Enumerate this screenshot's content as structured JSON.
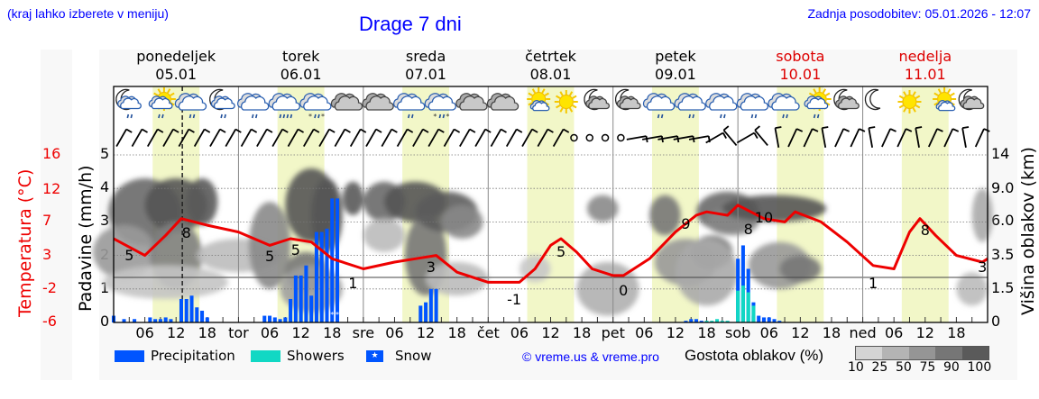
{
  "header": {
    "note": "(kraj lahko izberete v meniju)",
    "title": "Drage 7 dni",
    "last_update": "Zadnja posodobitev: 05.01.2026 - 12:07"
  },
  "days": [
    {
      "name": "ponedeljek",
      "date": "05.01",
      "weekend": false
    },
    {
      "name": "torek",
      "date": "06.01",
      "weekend": false
    },
    {
      "name": "sreda",
      "date": "07.01",
      "weekend": false
    },
    {
      "name": "četrtek",
      "date": "08.01",
      "weekend": false
    },
    {
      "name": "petek",
      "date": "09.01",
      "weekend": false
    },
    {
      "name": "sobota",
      "date": "10.01",
      "weekend": true
    },
    {
      "name": "nedelja",
      "date": "11.01",
      "weekend": true
    }
  ],
  "axes": {
    "temperature_label": "Temperatura (°C)",
    "temperature_ticks": [
      "16",
      "12",
      "7",
      "3",
      "-2",
      "-6"
    ],
    "precip_label": "Padavine (mm/h)",
    "precip_ticks": [
      "0",
      "1",
      "2",
      "3",
      "4",
      "5"
    ],
    "cloud_label": "Višina oblakov (km)",
    "cloud_ticks": [
      "0",
      "1.5",
      "3.5",
      "6.0",
      "9.0",
      "14"
    ],
    "x_ticks": [
      "06",
      "12",
      "18",
      "tor",
      "06",
      "12",
      "18",
      "sre",
      "06",
      "12",
      "18",
      "čet",
      "06",
      "12",
      "18",
      "pet",
      "06",
      "12",
      "18",
      "sob",
      "06",
      "12",
      "18",
      "ned",
      "06",
      "12",
      "18"
    ]
  },
  "legend": {
    "precipitation": "Precipitation",
    "showers": "Showers",
    "snow": "Snow",
    "copyright": "© vreme.us & vreme.pro",
    "cloud_density_title": "Gostota oblakov (%)",
    "cloud_density_ticks": [
      "10",
      "25",
      "50",
      "75",
      "90",
      "100"
    ]
  },
  "colors": {
    "precipitation": "#0055ff",
    "showers": "#11d8c4",
    "temperature": "#ee0000",
    "daylight": "#f2f7c8",
    "title": "#0000ff",
    "weekend": "#dd0000"
  },
  "weather_icons": [
    "moon-cloud-rain",
    "sun-cloud-rain",
    "cloud-rain",
    "moon-cloud-rain",
    "cloud-rain",
    "cloud-heavy-rain",
    "cloud-sleet",
    "cloud",
    "cloud",
    "cloud-rain",
    "cloud-sleet",
    "cloud",
    "cloud",
    "sun-small-cloud",
    "sun",
    "moon-cloud",
    "moon-cloud",
    "cloud-rain",
    "cloud-rain",
    "cloud-rain",
    "cloud-rain",
    "cloud-rain",
    "sun-cloud-rain",
    "moon-cloud",
    "moon",
    "sun",
    "sun-small-cloud",
    "moon-cloud"
  ],
  "chart_data": {
    "type": "line+bar",
    "title": "Drage 7 dni",
    "x_unit": "hours from Mon 05.01 00:00",
    "current_time_hour": 12,
    "temperature": {
      "name": "Temperatura (°C)",
      "labels": [
        {
          "hour": 3,
          "value": 5
        },
        {
          "hour": 14,
          "value": 8
        },
        {
          "hour": 30,
          "value": 5
        },
        {
          "hour": 35,
          "value": 5
        },
        {
          "hour": 46,
          "value": 1
        },
        {
          "hour": 61,
          "value": 3
        },
        {
          "hour": 77,
          "value": -1
        },
        {
          "hour": 86,
          "value": 5
        },
        {
          "hour": 98,
          "value": 0
        },
        {
          "hour": 110,
          "value": 9
        },
        {
          "hour": 122,
          "value": 8
        },
        {
          "hour": 125,
          "value": 10
        },
        {
          "hour": 146,
          "value": 1
        },
        {
          "hour": 156,
          "value": 8
        },
        {
          "hour": 167,
          "value": 3
        }
      ],
      "points": [
        [
          0,
          2.5
        ],
        [
          6,
          2.0
        ],
        [
          10,
          2.6
        ],
        [
          13,
          3.1
        ],
        [
          18,
          2.9
        ],
        [
          24,
          2.7
        ],
        [
          30,
          2.3
        ],
        [
          34,
          2.5
        ],
        [
          38,
          2.4
        ],
        [
          42,
          1.9
        ],
        [
          48,
          1.6
        ],
        [
          54,
          1.8
        ],
        [
          58,
          1.9
        ],
        [
          62,
          2.0
        ],
        [
          66,
          1.5
        ],
        [
          72,
          1.2
        ],
        [
          78,
          1.2
        ],
        [
          81,
          1.6
        ],
        [
          84,
          2.3
        ],
        [
          86,
          2.5
        ],
        [
          89,
          2.1
        ],
        [
          92,
          1.6
        ],
        [
          96,
          1.4
        ],
        [
          98,
          1.4
        ],
        [
          103,
          1.9
        ],
        [
          108,
          2.7
        ],
        [
          112,
          3.2
        ],
        [
          114,
          3.3
        ],
        [
          118,
          3.2
        ],
        [
          120,
          3.5
        ],
        [
          125,
          3.1
        ],
        [
          129,
          3.0
        ],
        [
          131,
          3.3
        ],
        [
          136,
          3.0
        ],
        [
          141,
          2.4
        ],
        [
          146,
          1.7
        ],
        [
          150,
          1.6
        ],
        [
          153,
          2.7
        ],
        [
          155,
          3.1
        ],
        [
          158,
          2.6
        ],
        [
          162,
          2.0
        ],
        [
          167,
          1.8
        ],
        [
          168,
          1.9
        ]
      ]
    },
    "precipitation_mm_h": [
      {
        "hour": 0,
        "value": 0.2
      },
      {
        "hour": 2,
        "value": 0.1
      },
      {
        "hour": 4,
        "value": 0.1
      },
      {
        "hour": 7,
        "value": 0.15
      },
      {
        "hour": 8,
        "value": 0.1
      },
      {
        "hour": 9,
        "value": 0.1
      },
      {
        "hour": 10,
        "value": 0.15
      },
      {
        "hour": 11,
        "value": 0.1
      },
      {
        "hour": 13,
        "value": 0.7
      },
      {
        "hour": 14,
        "value": 0.7
      },
      {
        "hour": 15,
        "value": 0.8
      },
      {
        "hour": 16,
        "value": 0.45
      },
      {
        "hour": 17,
        "value": 0.35
      },
      {
        "hour": 18,
        "value": 0.15
      },
      {
        "hour": 29,
        "value": 0.2
      },
      {
        "hour": 30,
        "value": 0.2
      },
      {
        "hour": 31,
        "value": 0.15
      },
      {
        "hour": 32,
        "value": 0.1
      },
      {
        "hour": 33,
        "value": 0.15
      },
      {
        "hour": 34,
        "value": 0.7
      },
      {
        "hour": 35,
        "value": 1.4
      },
      {
        "hour": 36,
        "value": 1.4
      },
      {
        "hour": 37,
        "value": 1.7
      },
      {
        "hour": 38,
        "value": 0.8
      },
      {
        "hour": 39,
        "value": 2.7
      },
      {
        "hour": 40,
        "value": 2.7
      },
      {
        "hour": 41,
        "value": 2.8
      },
      {
        "hour": 42,
        "value": 3.7
      },
      {
        "hour": 43,
        "value": 3.7
      },
      {
        "hour": 59,
        "value": 0.5
      },
      {
        "hour": 60,
        "value": 0.6
      },
      {
        "hour": 61,
        "value": 1.0
      },
      {
        "hour": 62,
        "value": 1.0
      },
      {
        "hour": 110,
        "value": 0.05
      },
      {
        "hour": 111,
        "value": 0.1
      },
      {
        "hour": 112,
        "value": 0.1
      },
      {
        "hour": 113,
        "value": 0.05
      },
      {
        "hour": 123,
        "value": 0.2
      },
      {
        "hour": 124,
        "value": 0.2
      },
      {
        "hour": 125,
        "value": 0.15
      },
      {
        "hour": 126,
        "value": 0.15
      },
      {
        "hour": 127,
        "value": 0.1
      },
      {
        "hour": 128,
        "value": 0.05
      }
    ],
    "showers_mm_h": [
      {
        "hour": 114,
        "value": 0.05
      },
      {
        "hour": 115,
        "value": 0.05
      },
      {
        "hour": 116,
        "value": 0.1
      },
      {
        "hour": 117,
        "value": 0.05
      },
      {
        "hour": 118,
        "value": 0.05
      },
      {
        "hour": 120,
        "value": 0.95
      },
      {
        "hour": 121,
        "value": 1.1
      },
      {
        "hour": 122,
        "value": 0.9
      },
      {
        "hour": 123,
        "value": 0.5
      },
      {
        "hour": 120,
        "value_total": 1.9
      },
      {
        "hour": 121,
        "value_total": 2.3
      },
      {
        "hour": 122,
        "value_total": 1.6
      },
      {
        "hour": 123,
        "value_total": 0.6
      }
    ],
    "snow_markers_hours": [
      42,
      43
    ],
    "cloud_height_km_ticks": [
      0,
      1.5,
      3.5,
      6.0,
      9.0,
      14
    ],
    "precip_ylim": [
      0,
      5
    ],
    "temperature_ticks": [
      16,
      12,
      7,
      3,
      -2,
      -6
    ],
    "xlabel": "",
    "ylabel_left": "Padavine (mm/h)",
    "ylabel_right": "Višina oblakov (km)"
  }
}
